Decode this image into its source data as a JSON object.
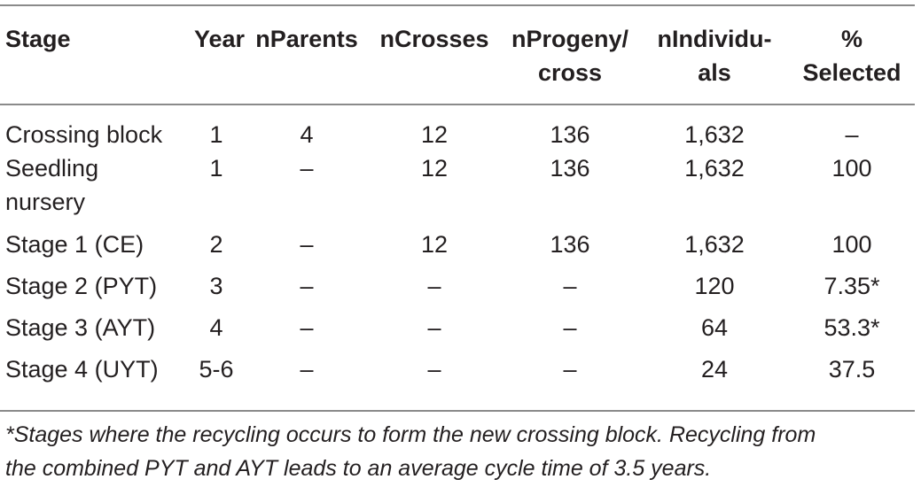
{
  "table": {
    "headers": {
      "stage": "Stage",
      "year": "Year",
      "nparents": "nParents",
      "ncrosses": "nCrosses",
      "nprogeny_line1": "nProgeny/",
      "nprogeny_line2": "cross",
      "nindividuals_line1": "nIndividu-",
      "nindividuals_line2": "als",
      "selected_line1": "%",
      "selected_line2": "Selected"
    },
    "rows": [
      {
        "stage_line1": "Crossing block",
        "stage_line2": "",
        "year": "1",
        "nparents": "4",
        "ncrosses": "12",
        "nprogeny": "136",
        "nindividuals": "1,632",
        "selected": "–"
      },
      {
        "stage_line1": "Seedling",
        "stage_line2": "nursery",
        "year": "1",
        "nparents": "–",
        "ncrosses": "12",
        "nprogeny": "136",
        "nindividuals": "1,632",
        "selected": "100"
      },
      {
        "stage_line1": "Stage 1 (CE)",
        "stage_line2": "",
        "year": "2",
        "nparents": "–",
        "ncrosses": "12",
        "nprogeny": "136",
        "nindividuals": "1,632",
        "selected": "100"
      },
      {
        "stage_line1": "Stage 2 (PYT)",
        "stage_line2": "",
        "year": "3",
        "nparents": "–",
        "ncrosses": "–",
        "nprogeny": "–",
        "nindividuals": "120",
        "selected": "7.35*"
      },
      {
        "stage_line1": "Stage 3 (AYT)",
        "stage_line2": "",
        "year": "4",
        "nparents": "–",
        "ncrosses": "–",
        "nprogeny": "–",
        "nindividuals": "64",
        "selected": "53.3*"
      },
      {
        "stage_line1": "Stage 4 (UYT)",
        "stage_line2": "",
        "year": "5-6",
        "nparents": "–",
        "ncrosses": "–",
        "nprogeny": "–",
        "nindividuals": "24",
        "selected": "37.5"
      }
    ],
    "footnote_line1": "*Stages where the recycling occurs to form the new crossing block. Recycling from",
    "footnote_line2": "the combined PYT and AYT leads to an average cycle time of 3.5 years."
  }
}
